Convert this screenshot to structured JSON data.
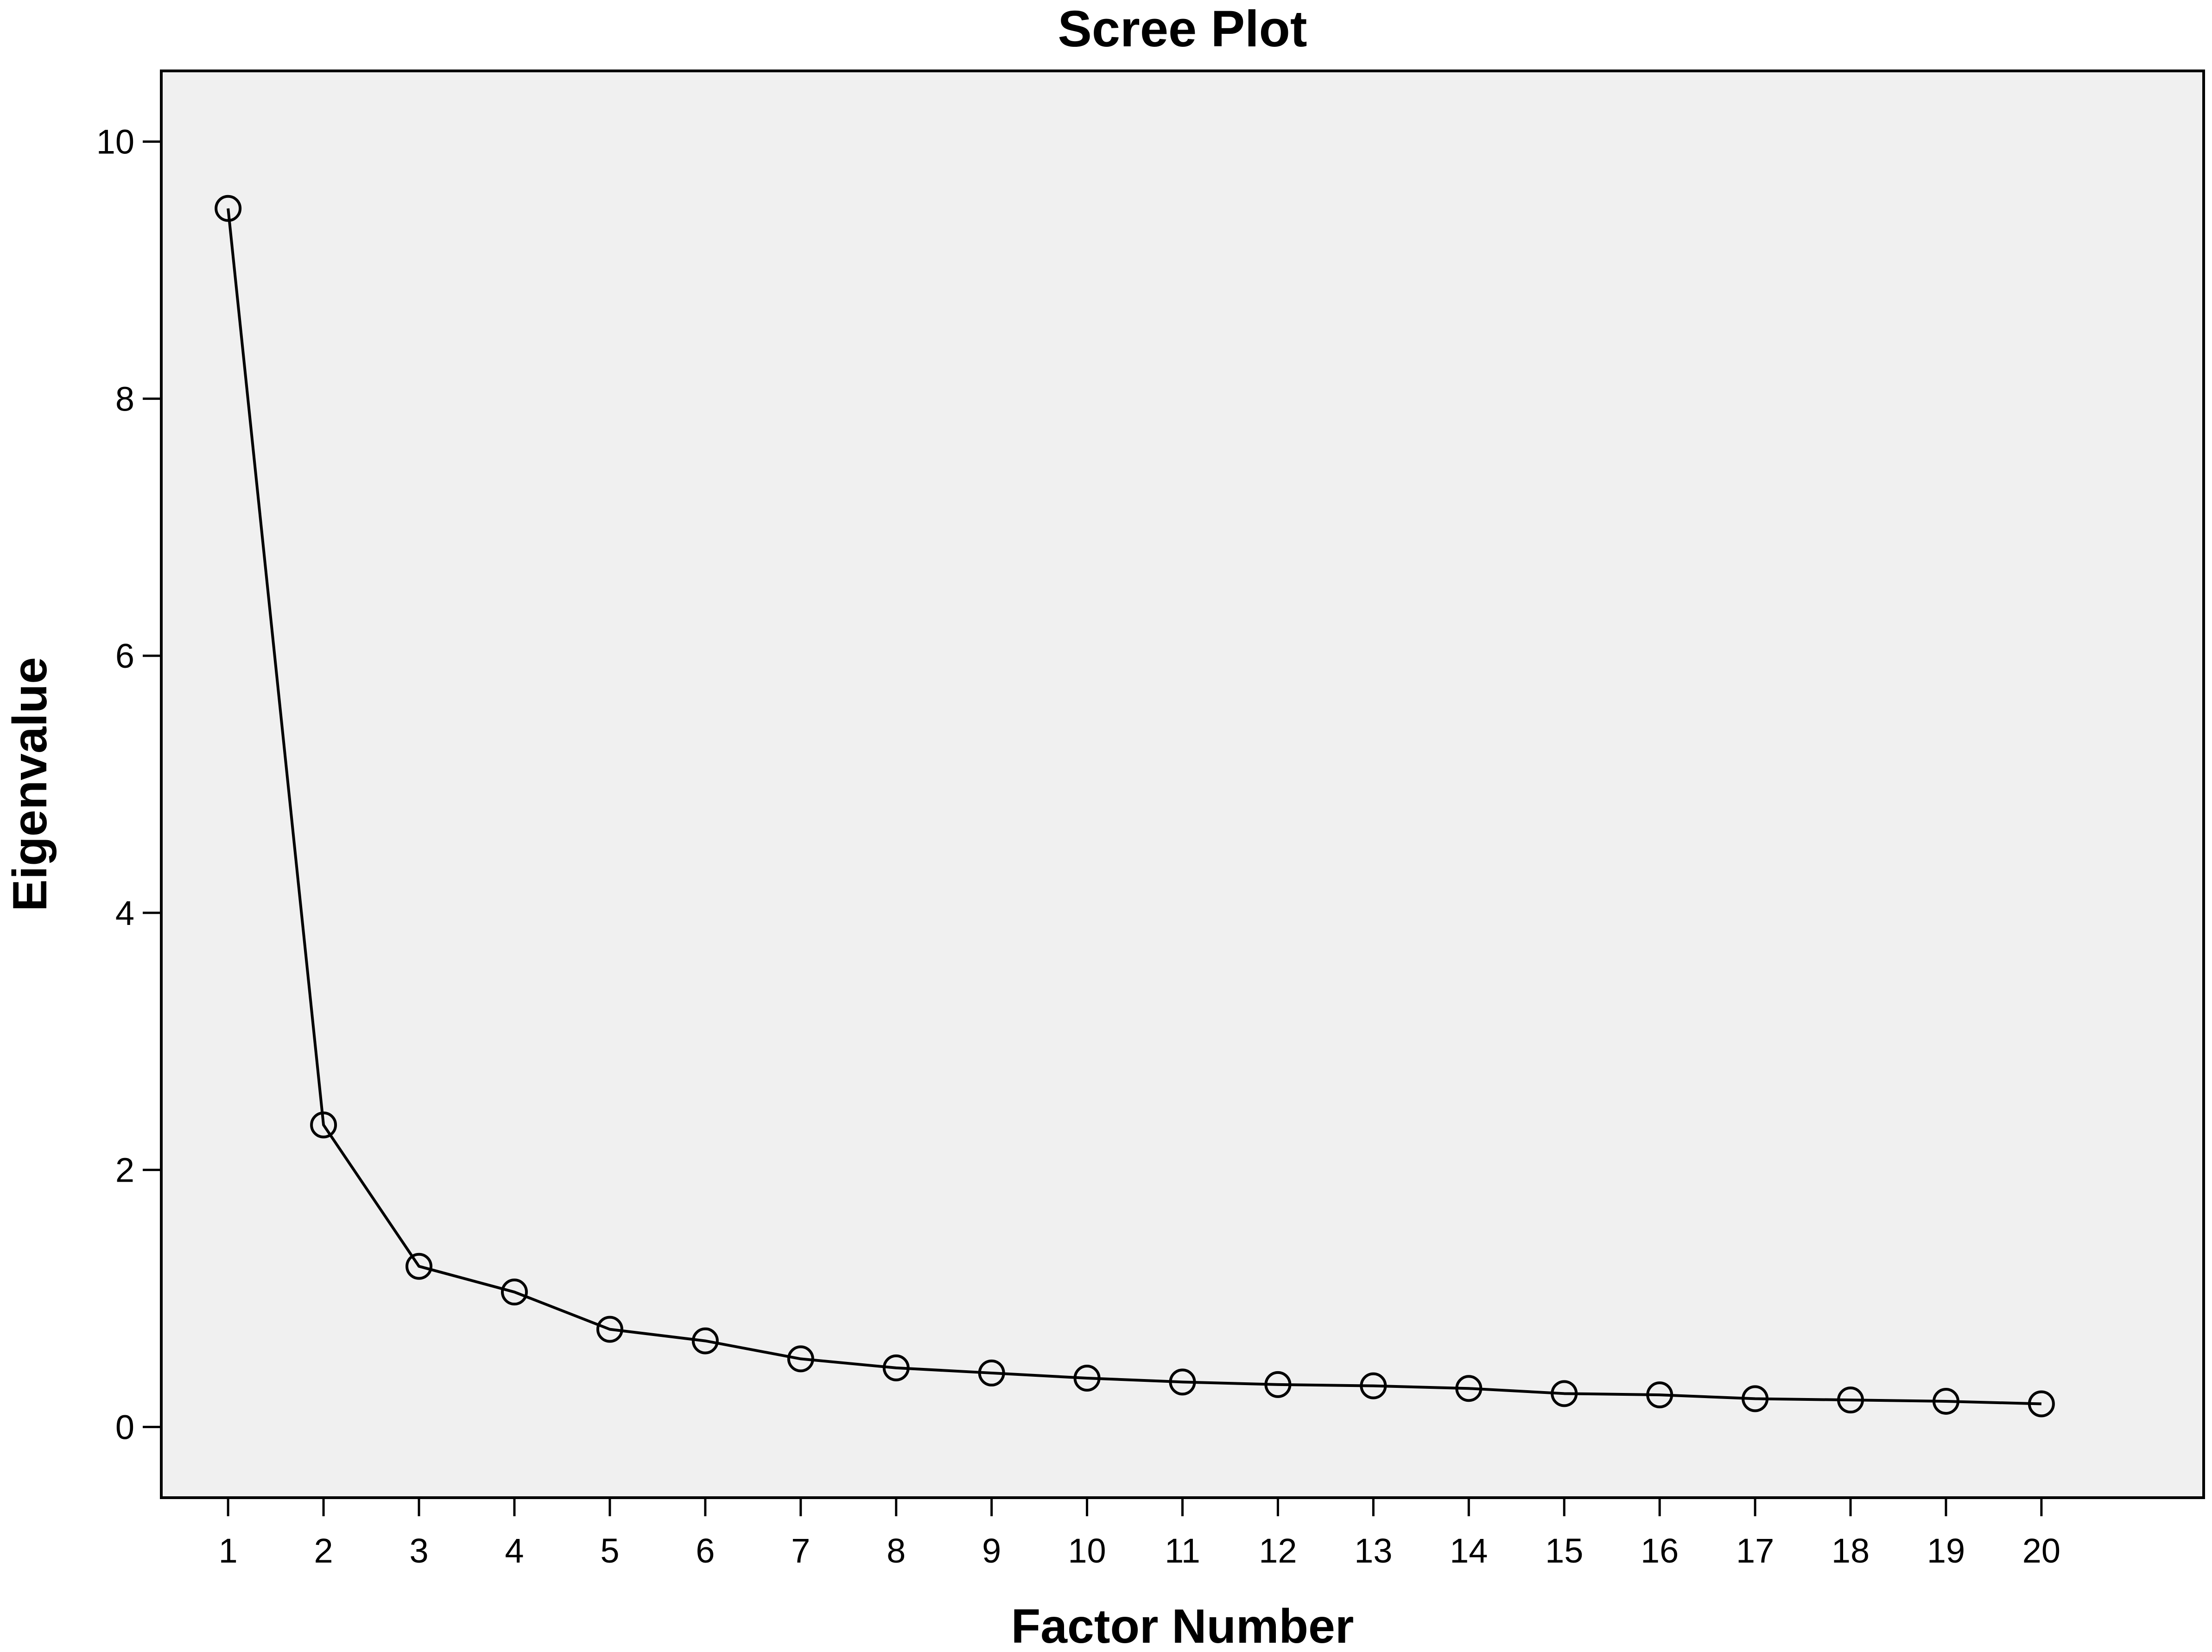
{
  "chart_data": {
    "type": "line",
    "title": "Scree Plot",
    "xlabel": "Factor Number",
    "ylabel": "Eigenvalue",
    "x": [
      1,
      2,
      3,
      4,
      5,
      6,
      7,
      8,
      9,
      10,
      11,
      12,
      13,
      14,
      15,
      16,
      17,
      18,
      19,
      20
    ],
    "xticks": [
      "1",
      "2",
      "3",
      "4",
      "5",
      "6",
      "7",
      "8",
      "9",
      "10",
      "11",
      "12",
      "13",
      "14",
      "15",
      "16",
      "17",
      "18",
      "19",
      "20"
    ],
    "series": [
      {
        "values": [
          9.48,
          2.35,
          1.25,
          1.05,
          0.76,
          0.67,
          0.53,
          0.46,
          0.42,
          0.38,
          0.35,
          0.33,
          0.32,
          0.3,
          0.26,
          0.25,
          0.22,
          0.21,
          0.2,
          0.18
        ]
      }
    ],
    "yticks": [
      0,
      2,
      4,
      6,
      8,
      10
    ],
    "xlim": [
      0.3,
      21.7
    ],
    "ylim": [
      -0.55,
      10.55
    ],
    "grid": false,
    "legend": "none",
    "marker": "open-circle"
  },
  "colors": {
    "plot_background": "#f0f0f0",
    "line": "#000000",
    "frame": "#000000",
    "page_background": "#ffffff"
  }
}
